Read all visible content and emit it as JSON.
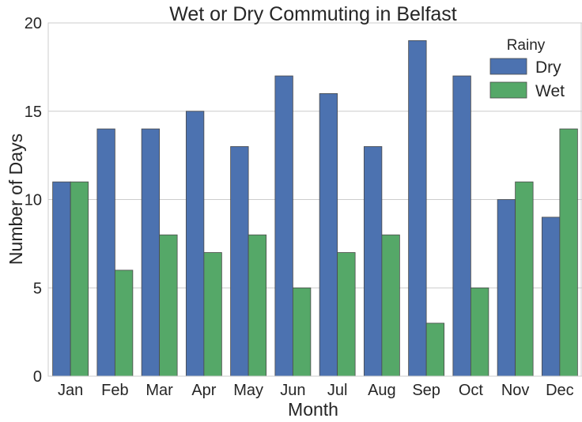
{
  "chart_data": {
    "type": "bar",
    "title": "Wet or Dry Commuting in Belfast",
    "xlabel": "Month",
    "ylabel": "Number of Days",
    "categories": [
      "Jan",
      "Feb",
      "Mar",
      "Apr",
      "May",
      "Jun",
      "Jul",
      "Aug",
      "Sep",
      "Oct",
      "Nov",
      "Dec"
    ],
    "series": [
      {
        "name": "Dry",
        "color": "#4c72b0",
        "values": [
          11,
          14,
          14,
          15,
          13,
          17,
          16,
          13,
          19,
          17,
          10,
          9
        ]
      },
      {
        "name": "Wet",
        "color": "#55a868",
        "values": [
          11,
          6,
          8,
          7,
          8,
          5,
          7,
          8,
          3,
          5,
          11,
          14
        ]
      }
    ],
    "ylim": [
      0,
      20
    ],
    "yticks": [
      0,
      5,
      10,
      15,
      20
    ],
    "grid": "horizontal",
    "legend": {
      "title": "Rainy",
      "placement": "top-right"
    }
  }
}
